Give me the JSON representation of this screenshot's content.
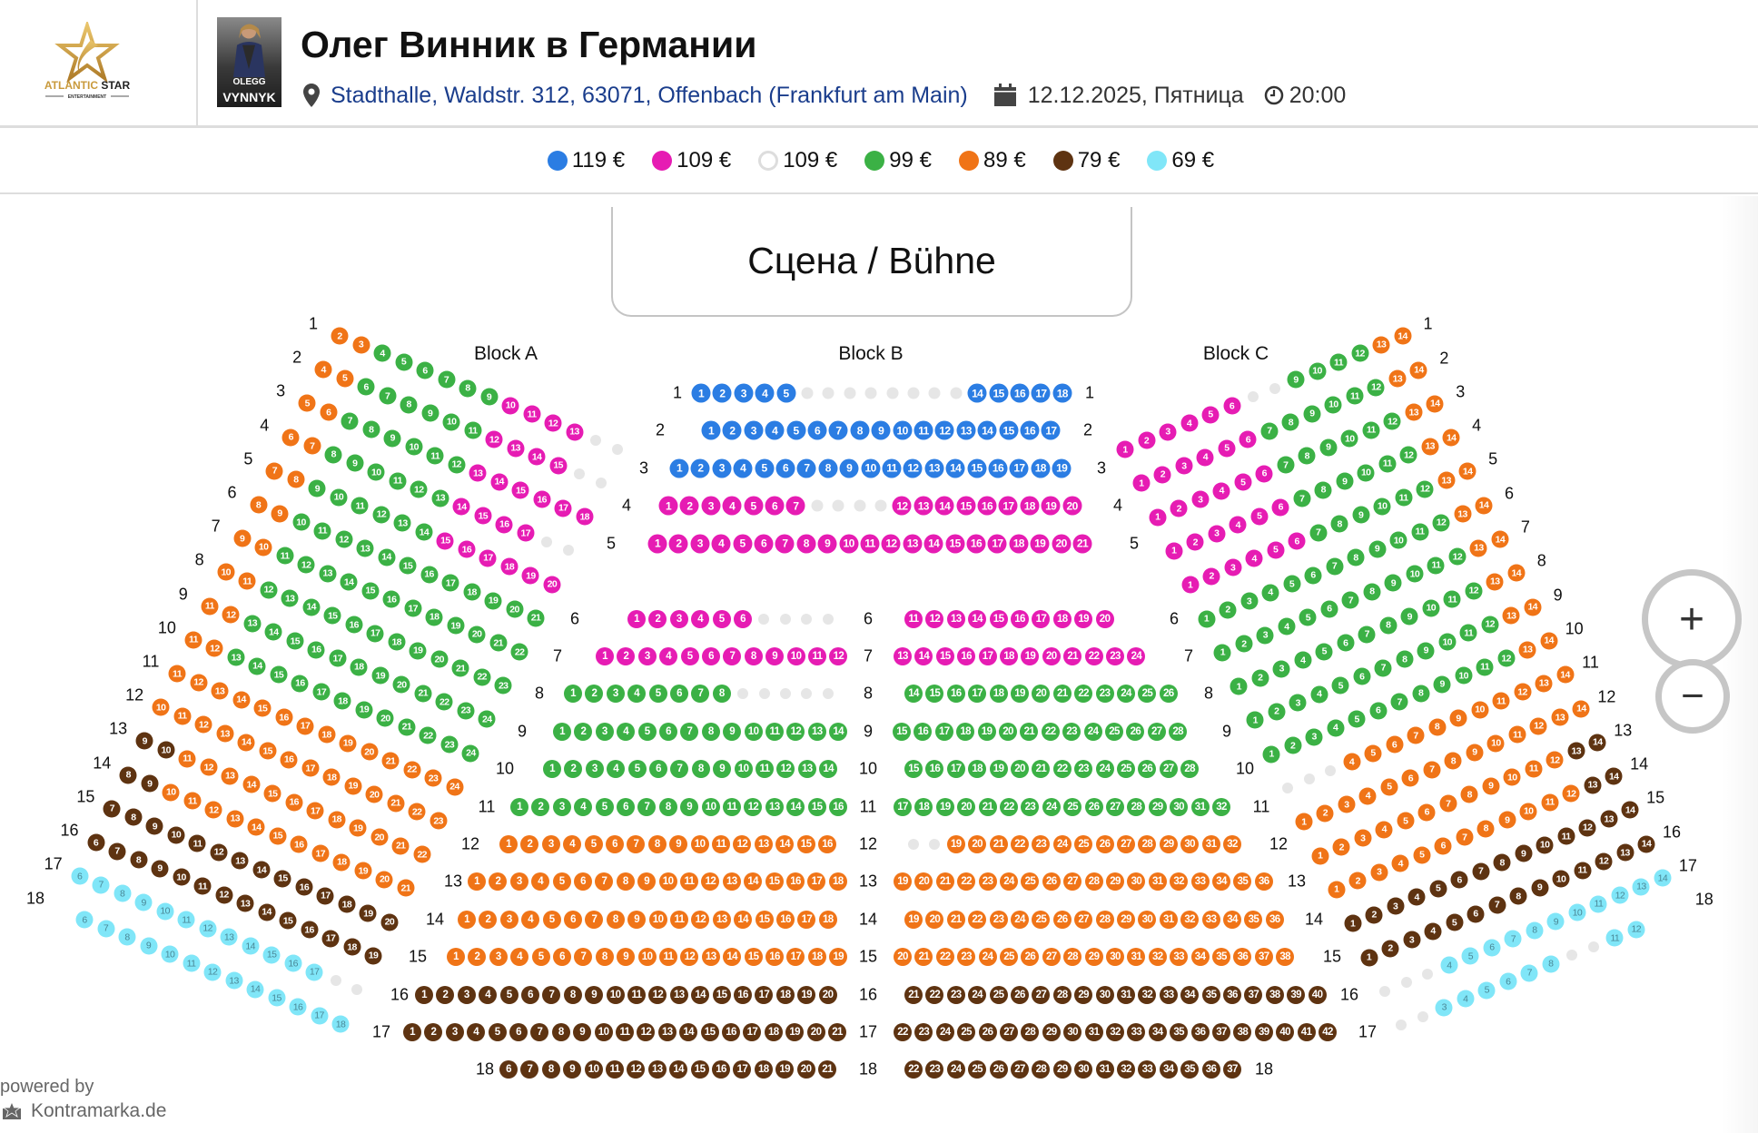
{
  "header": {
    "logo_text": "ATLANTIC STAR",
    "logo_subtext": "ENTERTAINMENT",
    "photo_text_1": "OLEGG",
    "photo_text_2": "VYNNYK",
    "title": "Олег Винник в Германии",
    "venue": "Stadthalle, Waldstr. 312, 63071, Offenbach (Frankfurt am Main)",
    "date": "12.12.2025, Пятница",
    "time": "20:00",
    "icons": {
      "venue": "map-pin-icon",
      "date": "calendar-icon",
      "time": "clock-icon"
    }
  },
  "colors": {
    "blue": "#2b7de3",
    "magenta": "#e61cb3",
    "white": "#ffffff",
    "green": "#3bb145",
    "orange": "#f07417",
    "brown": "#5e3311",
    "cyan": "#80e6f8",
    "na": "#e6e6e6"
  },
  "legend": [
    {
      "label": "119 €",
      "color": "blue"
    },
    {
      "label": "109 €",
      "color": "magenta"
    },
    {
      "label": "109 €",
      "color": "white"
    },
    {
      "label": "99 €",
      "color": "green"
    },
    {
      "label": "89 €",
      "color": "orange"
    },
    {
      "label": "79 €",
      "color": "brown"
    },
    {
      "label": "69 €",
      "color": "cyan"
    }
  ],
  "stage_label": "Сцена / Bühne",
  "blocks": {
    "a": {
      "label": "Block A",
      "rows": [
        {
          "row": "1",
          "segments": [
            [
              2,
              3,
              "orange"
            ],
            [
              4,
              9,
              "green"
            ],
            [
              10,
              13,
              "magenta"
            ],
            [
              14,
              15,
              "na"
            ]
          ]
        },
        {
          "row": "2",
          "segments": [
            [
              4,
              5,
              "orange"
            ],
            [
              6,
              11,
              "green"
            ],
            [
              12,
              15,
              "magenta"
            ],
            [
              16,
              17,
              "na"
            ]
          ]
        },
        {
          "row": "3",
          "segments": [
            [
              5,
              6,
              "orange"
            ],
            [
              7,
              12,
              "green"
            ],
            [
              13,
              18,
              "magenta"
            ]
          ]
        },
        {
          "row": "4",
          "segments": [
            [
              6,
              7,
              "orange"
            ],
            [
              8,
              13,
              "green"
            ],
            [
              14,
              17,
              "magenta"
            ],
            [
              18,
              19,
              "na"
            ]
          ]
        },
        {
          "row": "5",
          "segments": [
            [
              7,
              8,
              "orange"
            ],
            [
              9,
              14,
              "green"
            ],
            [
              15,
              20,
              "magenta"
            ]
          ]
        },
        {
          "row": "6",
          "segments": [
            [
              8,
              9,
              "orange"
            ],
            [
              10,
              21,
              "green"
            ]
          ]
        },
        {
          "row": "7",
          "segments": [
            [
              9,
              10,
              "orange"
            ],
            [
              11,
              22,
              "green"
            ]
          ]
        },
        {
          "row": "8",
          "segments": [
            [
              10,
              11,
              "orange"
            ],
            [
              12,
              23,
              "green"
            ]
          ]
        },
        {
          "row": "9",
          "segments": [
            [
              11,
              12,
              "orange"
            ],
            [
              13,
              24,
              "green"
            ]
          ]
        },
        {
          "row": "10",
          "segments": [
            [
              11,
              12,
              "orange"
            ],
            [
              13,
              24,
              "green"
            ]
          ]
        },
        {
          "row": "11",
          "segments": [
            [
              11,
              24,
              "orange"
            ]
          ]
        },
        {
          "row": "12",
          "segments": [
            [
              10,
              23,
              "orange"
            ]
          ]
        },
        {
          "row": "13",
          "segments": [
            [
              9,
              10,
              "brown"
            ],
            [
              11,
              22,
              "orange"
            ]
          ]
        },
        {
          "row": "14",
          "segments": [
            [
              8,
              9,
              "brown"
            ],
            [
              10,
              21,
              "orange"
            ]
          ]
        },
        {
          "row": "15",
          "segments": [
            [
              7,
              20,
              "brown"
            ]
          ]
        },
        {
          "row": "16",
          "segments": [
            [
              6,
              19,
              "brown"
            ]
          ]
        },
        {
          "row": "17",
          "segments": [
            [
              6,
              17,
              "cyan"
            ],
            [
              18,
              19,
              "na"
            ]
          ]
        },
        {
          "row": "18",
          "segments": [
            [
              6,
              18,
              "cyan"
            ]
          ]
        }
      ]
    },
    "b": {
      "label": "Block B",
      "rows_front": [
        {
          "row": "1",
          "segments": [
            [
              1,
              5,
              "blue"
            ],
            [
              6,
              13,
              "na"
            ],
            [
              14,
              18,
              "blue"
            ]
          ]
        },
        {
          "row": "2",
          "segments": [
            [
              1,
              17,
              "blue"
            ]
          ]
        },
        {
          "row": "3",
          "segments": [
            [
              1,
              19,
              "blue"
            ]
          ]
        },
        {
          "row": "4",
          "segments": [
            [
              1,
              7,
              "magenta"
            ],
            [
              8,
              11,
              "na"
            ],
            [
              12,
              20,
              "magenta"
            ]
          ]
        },
        {
          "row": "5",
          "segments": [
            [
              1,
              21,
              "magenta"
            ]
          ]
        }
      ],
      "rows_split": [
        {
          "row": "6",
          "left": [
            [
              1,
              6,
              "magenta"
            ],
            [
              7,
              10,
              "na"
            ]
          ],
          "right": [
            [
              11,
              20,
              "magenta"
            ]
          ]
        },
        {
          "row": "7",
          "left": [
            [
              1,
              12,
              "magenta"
            ]
          ],
          "right": [
            [
              13,
              24,
              "magenta"
            ]
          ]
        },
        {
          "row": "8",
          "left": [
            [
              1,
              8,
              "green"
            ],
            [
              9,
              13,
              "na"
            ]
          ],
          "right": [
            [
              14,
              26,
              "green"
            ]
          ]
        },
        {
          "row": "9",
          "left": [
            [
              1,
              14,
              "green"
            ]
          ],
          "right": [
            [
              15,
              28,
              "green"
            ]
          ]
        },
        {
          "row": "10",
          "left": [
            [
              1,
              14,
              "green"
            ]
          ],
          "right": [
            [
              15,
              28,
              "green"
            ]
          ]
        },
        {
          "row": "11",
          "left": [
            [
              1,
              16,
              "green"
            ]
          ],
          "right": [
            [
              17,
              32,
              "green"
            ]
          ]
        },
        {
          "row": "12",
          "left": [
            [
              1,
              16,
              "orange"
            ]
          ],
          "right": [
            [
              17,
              18,
              "na"
            ],
            [
              19,
              32,
              "orange"
            ]
          ]
        },
        {
          "row": "13",
          "left": [
            [
              1,
              18,
              "orange"
            ]
          ],
          "right": [
            [
              19,
              36,
              "orange"
            ]
          ]
        },
        {
          "row": "14",
          "left": [
            [
              1,
              18,
              "orange"
            ]
          ],
          "right": [
            [
              19,
              36,
              "orange"
            ]
          ]
        },
        {
          "row": "15",
          "left": [
            [
              1,
              19,
              "orange"
            ]
          ],
          "right": [
            [
              20,
              38,
              "orange"
            ]
          ]
        },
        {
          "row": "16",
          "left": [
            [
              1,
              20,
              "brown"
            ]
          ],
          "right": [
            [
              21,
              40,
              "brown"
            ]
          ]
        },
        {
          "row": "17",
          "left": [
            [
              1,
              21,
              "brown"
            ]
          ],
          "right": [
            [
              22,
              42,
              "brown"
            ]
          ]
        },
        {
          "row": "18",
          "left": [
            [
              6,
              21,
              "brown"
            ]
          ],
          "right": [
            [
              22,
              37,
              "brown"
            ]
          ]
        }
      ]
    },
    "c": {
      "label": "Block C",
      "rows": [
        {
          "row": "1",
          "segments": [
            [
              1,
              6,
              "magenta"
            ],
            [
              7,
              8,
              "na"
            ],
            [
              9,
              12,
              "green"
            ],
            [
              13,
              14,
              "orange"
            ]
          ]
        },
        {
          "row": "2",
          "segments": [
            [
              1,
              6,
              "magenta"
            ],
            [
              7,
              12,
              "green"
            ],
            [
              13,
              14,
              "orange"
            ]
          ]
        },
        {
          "row": "3",
          "segments": [
            [
              1,
              6,
              "magenta"
            ],
            [
              7,
              12,
              "green"
            ],
            [
              13,
              14,
              "orange"
            ]
          ]
        },
        {
          "row": "4",
          "segments": [
            [
              1,
              6,
              "magenta"
            ],
            [
              7,
              12,
              "green"
            ],
            [
              13,
              14,
              "orange"
            ]
          ]
        },
        {
          "row": "5",
          "segments": [
            [
              1,
              6,
              "magenta"
            ],
            [
              7,
              12,
              "green"
            ],
            [
              13,
              14,
              "orange"
            ]
          ]
        },
        {
          "row": "6",
          "segments": [
            [
              1,
              12,
              "green"
            ],
            [
              13,
              14,
              "orange"
            ]
          ]
        },
        {
          "row": "7",
          "segments": [
            [
              1,
              12,
              "green"
            ],
            [
              13,
              14,
              "orange"
            ]
          ]
        },
        {
          "row": "8",
          "segments": [
            [
              1,
              12,
              "green"
            ],
            [
              13,
              14,
              "orange"
            ]
          ]
        },
        {
          "row": "9",
          "segments": [
            [
              1,
              12,
              "green"
            ],
            [
              13,
              14,
              "orange"
            ]
          ]
        },
        {
          "row": "10",
          "segments": [
            [
              1,
              12,
              "green"
            ],
            [
              13,
              14,
              "orange"
            ]
          ]
        },
        {
          "row": "11",
          "segments": [
            [
              1,
              3,
              "na"
            ],
            [
              4,
              14,
              "orange"
            ]
          ]
        },
        {
          "row": "12",
          "segments": [
            [
              1,
              14,
              "orange"
            ]
          ]
        },
        {
          "row": "13",
          "segments": [
            [
              1,
              12,
              "orange"
            ],
            [
              13,
              14,
              "brown"
            ]
          ]
        },
        {
          "row": "14",
          "segments": [
            [
              1,
              12,
              "orange"
            ],
            [
              13,
              14,
              "brown"
            ]
          ]
        },
        {
          "row": "15",
          "segments": [
            [
              1,
              14,
              "brown"
            ]
          ]
        },
        {
          "row": "16",
          "segments": [
            [
              1,
              14,
              "brown"
            ]
          ]
        },
        {
          "row": "17",
          "segments": [
            [
              1,
              3,
              "na"
            ],
            [
              4,
              14,
              "cyan"
            ]
          ]
        },
        {
          "row": "18",
          "segments": [
            [
              1,
              2,
              "na"
            ],
            [
              3,
              8,
              "cyan"
            ],
            [
              9,
              10,
              "na"
            ],
            [
              11,
              12,
              "cyan"
            ]
          ]
        }
      ]
    }
  },
  "zoom": {
    "in_label": "+",
    "out_label": "−"
  },
  "footer": {
    "powered_by": "powered by",
    "brand": "Kontramarka.de"
  }
}
